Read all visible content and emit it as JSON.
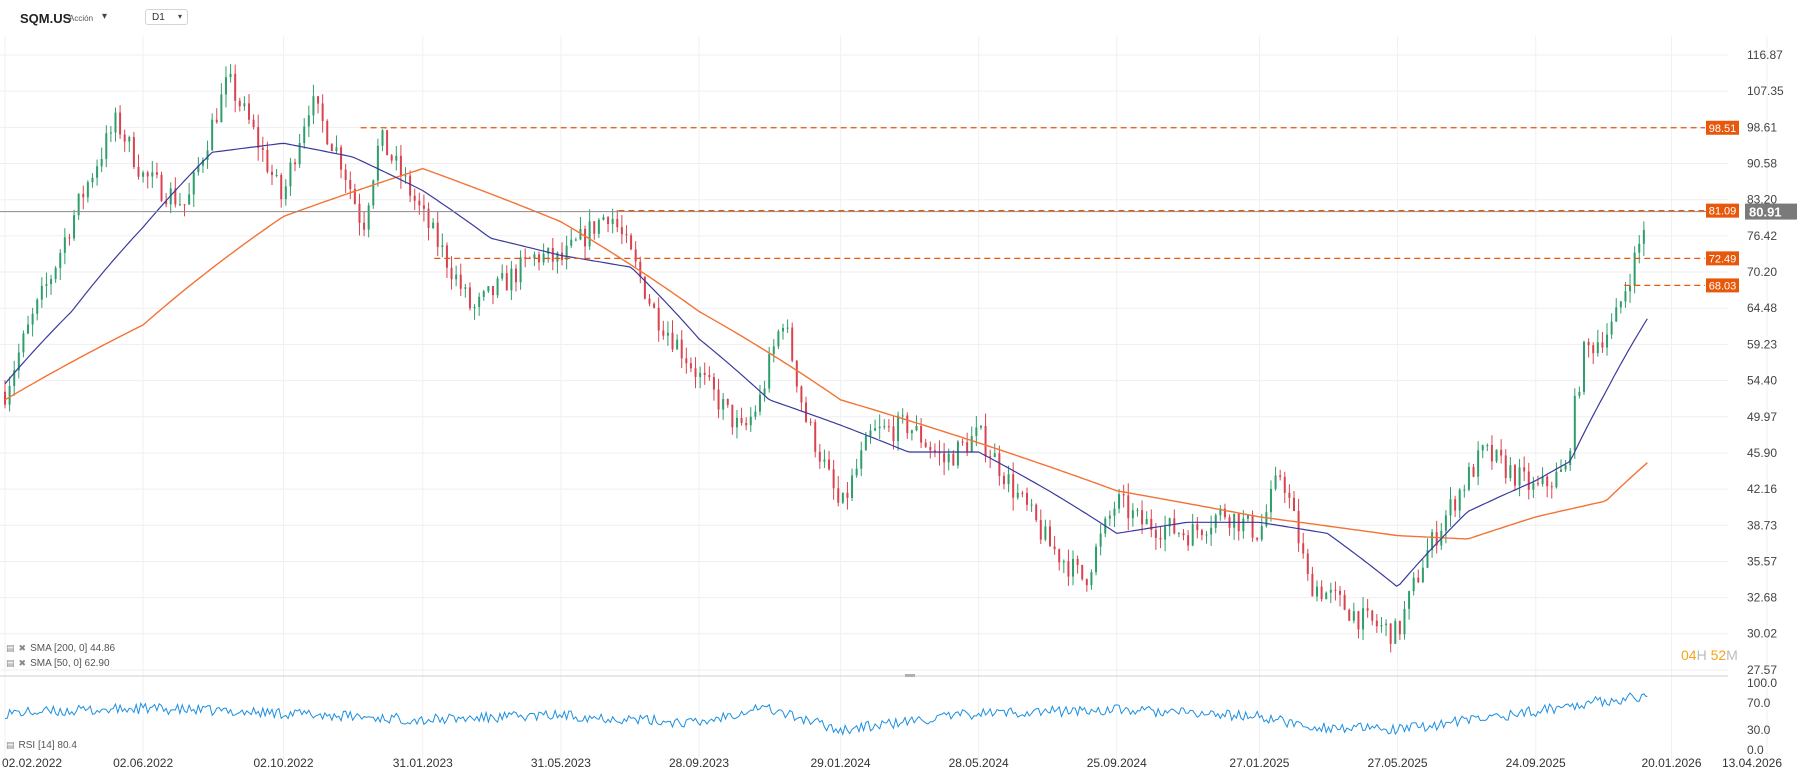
{
  "toolbar": {
    "symbol": "SQM.US",
    "asset_type": "Acción",
    "timeframe": "D1",
    "symbol_caret_icon": "chevron-down-icon",
    "timeframe_caret_icon": "chevron-down-icon"
  },
  "legends": {
    "sma200": "SMA [200, 0] 44.86",
    "sma50": "SMA [50, 0] 62.90",
    "rsi": "RSI [14] 80.4",
    "icons": [
      "settings-icon",
      "close-icon"
    ]
  },
  "timer": {
    "hours": "04",
    "hours_unit": "H",
    "minutes": "52",
    "minutes_unit": "M"
  },
  "colors": {
    "sma200": "#f37335",
    "sma50": "#3a3a9e",
    "up": "#2e9e6a",
    "down": "#d9434f",
    "rsi": "#1d8fe0",
    "level": "#e8580c",
    "current_price_tag": "#7a7a7a"
  },
  "chart_data": {
    "type": "candlestick",
    "x_tick_labels": [
      "02.02.2022",
      "02.06.2022",
      "02.10.2022",
      "31.01.2023",
      "31.05.2023",
      "28.09.2023",
      "29.01.2024",
      "28.05.2024",
      "25.09.2024",
      "27.01.2025",
      "27.05.2025",
      "24.09.2025",
      "20.01.2026",
      "13.04.2026"
    ],
    "y_tick_labels": [
      "116.87",
      "107.35",
      "98.61",
      "90.58",
      "83.20",
      "76.42",
      "70.20",
      "64.48",
      "59.23",
      "54.40",
      "49.97",
      "45.90",
      "42.16",
      "38.73",
      "35.57",
      "32.68",
      "30.02",
      "27.57"
    ],
    "y_scale": "log",
    "ylim": [
      27.57,
      116.87
    ],
    "current_price": 80.91,
    "horizontal_levels": [
      {
        "label": "98.51",
        "value": 98.51,
        "from": "08.12.2022"
      },
      {
        "label": "81.09",
        "value": 81.09,
        "from": "20.07.2023"
      },
      {
        "label": "72.49",
        "value": 72.49,
        "from": "10.02.2023"
      },
      {
        "label": "68.03",
        "value": 68.03,
        "from": "10.12.2025"
      }
    ],
    "close_path": [
      [
        "02.02.2022",
        53
      ],
      [
        "15.03.2022",
        70
      ],
      [
        "10.05.2022",
        100
      ],
      [
        "02.06.2022",
        88
      ],
      [
        "10.07.2022",
        82
      ],
      [
        "15.08.2022",
        110
      ],
      [
        "01.10.2022",
        83
      ],
      [
        "25.10.2022",
        105
      ],
      [
        "20.11.2022",
        92
      ],
      [
        "10.12.2022",
        78
      ],
      [
        "25.12.2022",
        96
      ],
      [
        "31.01.2023",
        80
      ],
      [
        "15.03.2023",
        64
      ],
      [
        "10.05.2023",
        73
      ],
      [
        "31.05.2023",
        72
      ],
      [
        "12.07.2023",
        81
      ],
      [
        "20.08.2023",
        64
      ],
      [
        "28.09.2023",
        55
      ],
      [
        "05.11.2023",
        48
      ],
      [
        "20.11.2023",
        52
      ],
      [
        "10.12.2023",
        63
      ],
      [
        "29.12.2023",
        50
      ],
      [
        "29.01.2024",
        40
      ],
      [
        "25.02.2024",
        48
      ],
      [
        "28.03.2024",
        49
      ],
      [
        "28.04.2024",
        45
      ],
      [
        "28.05.2024",
        48
      ],
      [
        "28.06.2024",
        42
      ],
      [
        "28.07.2024",
        37
      ],
      [
        "28.08.2024",
        34
      ],
      [
        "25.09.2024",
        41
      ],
      [
        "15.10.2024",
        39
      ],
      [
        "28.11.2024",
        38
      ],
      [
        "27.12.2024",
        40
      ],
      [
        "27.01.2025",
        38
      ],
      [
        "15.02.2025",
        44
      ],
      [
        "10.03.2025",
        34
      ],
      [
        "27.04.2025",
        31
      ],
      [
        "27.05.2025",
        30
      ],
      [
        "20.06.2025",
        36
      ],
      [
        "20.07.2025",
        42
      ],
      [
        "10.08.2025",
        46
      ],
      [
        "24.09.2025",
        42
      ],
      [
        "20.10.2025",
        44
      ],
      [
        "05.11.2025",
        58
      ],
      [
        "01.12.2025",
        62
      ],
      [
        "15.12.2025",
        70
      ],
      [
        "22.12.2025",
        74
      ],
      [
        "30.12.2025",
        80.91
      ]
    ],
    "sma50_path": [
      [
        "02.02.2022",
        54
      ],
      [
        "01.04.2022",
        64
      ],
      [
        "02.06.2022",
        78
      ],
      [
        "01.08.2022",
        93
      ],
      [
        "02.10.2022",
        95
      ],
      [
        "01.12.2022",
        92
      ],
      [
        "31.01.2023",
        85
      ],
      [
        "31.03.2023",
        76
      ],
      [
        "31.05.2023",
        73
      ],
      [
        "31.07.2023",
        71
      ],
      [
        "28.09.2023",
        60
      ],
      [
        "28.11.2023",
        52
      ],
      [
        "29.01.2024",
        49
      ],
      [
        "28.03.2024",
        46
      ],
      [
        "28.05.2024",
        46
      ],
      [
        "28.07.2024",
        42
      ],
      [
        "25.09.2024",
        38
      ],
      [
        "25.11.2024",
        39
      ],
      [
        "27.01.2025",
        39
      ],
      [
        "27.03.2025",
        38
      ],
      [
        "27.05.2025",
        33.5
      ],
      [
        "27.07.2025",
        40
      ],
      [
        "24.09.2025",
        43
      ],
      [
        "24.10.2025",
        45
      ],
      [
        "24.11.2025",
        53
      ],
      [
        "30.12.2025",
        62.9
      ]
    ],
    "sma200_path": [
      [
        "02.02.2022",
        52
      ],
      [
        "02.06.2022",
        62
      ],
      [
        "02.10.2022",
        80
      ],
      [
        "31.01.2023",
        89.5
      ],
      [
        "31.05.2023",
        79
      ],
      [
        "28.09.2023",
        64
      ],
      [
        "29.01.2024",
        52
      ],
      [
        "28.05.2024",
        47
      ],
      [
        "25.09.2024",
        42
      ],
      [
        "27.01.2025",
        39.5
      ],
      [
        "27.05.2025",
        37.8
      ],
      [
        "27.07.2025",
        37.5
      ],
      [
        "24.09.2025",
        39.5
      ],
      [
        "24.11.2025",
        41
      ],
      [
        "30.12.2025",
        44.86
      ]
    ],
    "rsi": {
      "name": "RSI [14]",
      "last_value": 80.4,
      "y_tick_labels": [
        "100.0",
        "70.0",
        "30.0",
        "0.0"
      ],
      "ylim": [
        0,
        100
      ],
      "path": [
        [
          "02.02.2022",
          55
        ],
        [
          "02.06.2022",
          62
        ],
        [
          "02.10.2022",
          55
        ],
        [
          "31.01.2023",
          45
        ],
        [
          "31.05.2023",
          52
        ],
        [
          "28.09.2023",
          40
        ],
        [
          "20.11.2023",
          65
        ],
        [
          "29.01.2024",
          30
        ],
        [
          "28.05.2024",
          55
        ],
        [
          "25.09.2024",
          60
        ],
        [
          "27.01.2025",
          50
        ],
        [
          "10.03.2025",
          35
        ],
        [
          "27.05.2025",
          30
        ],
        [
          "24.09.2025",
          58
        ],
        [
          "05.11.2025",
          70
        ],
        [
          "30.12.2025",
          80.4
        ]
      ]
    }
  }
}
